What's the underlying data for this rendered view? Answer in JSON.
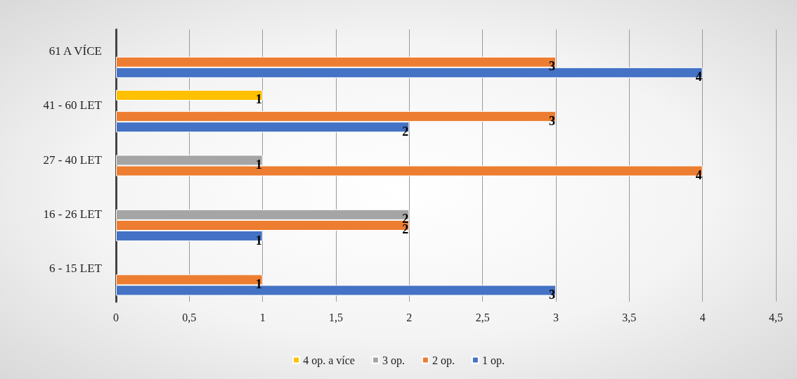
{
  "chart_data": {
    "type": "bar",
    "orientation": "horizontal",
    "categories": [
      "61 A VÍCE",
      "41 - 60 LET",
      "27 - 40 LET",
      "16 - 26 LET",
      "6 - 15 LET"
    ],
    "series": [
      {
        "name": "4 op. a více",
        "color": "#ffc000",
        "values": [
          null,
          1,
          null,
          null,
          null
        ]
      },
      {
        "name": "3 op.",
        "color": "#a5a5a5",
        "values": [
          null,
          null,
          1,
          2,
          null
        ]
      },
      {
        "name": "2 op.",
        "color": "#ed7d31",
        "values": [
          3,
          3,
          4,
          2,
          1
        ]
      },
      {
        "name": "1 op.",
        "color": "#4472c4",
        "values": [
          4,
          2,
          null,
          1,
          3
        ]
      }
    ],
    "xlim": [
      0,
      4.5
    ],
    "xticks": [
      0,
      {
        "value": 0.5,
        "label": "0,5"
      },
      1,
      {
        "value": 1.5,
        "label": "1,5"
      },
      2,
      {
        "value": 2.5,
        "label": "2,5"
      },
      3,
      {
        "value": 3.5,
        "label": "3,5"
      },
      4,
      {
        "value": 4.5,
        "label": "4,5"
      }
    ],
    "grid": "x",
    "legend": "bottom",
    "data_labels": true
  }
}
